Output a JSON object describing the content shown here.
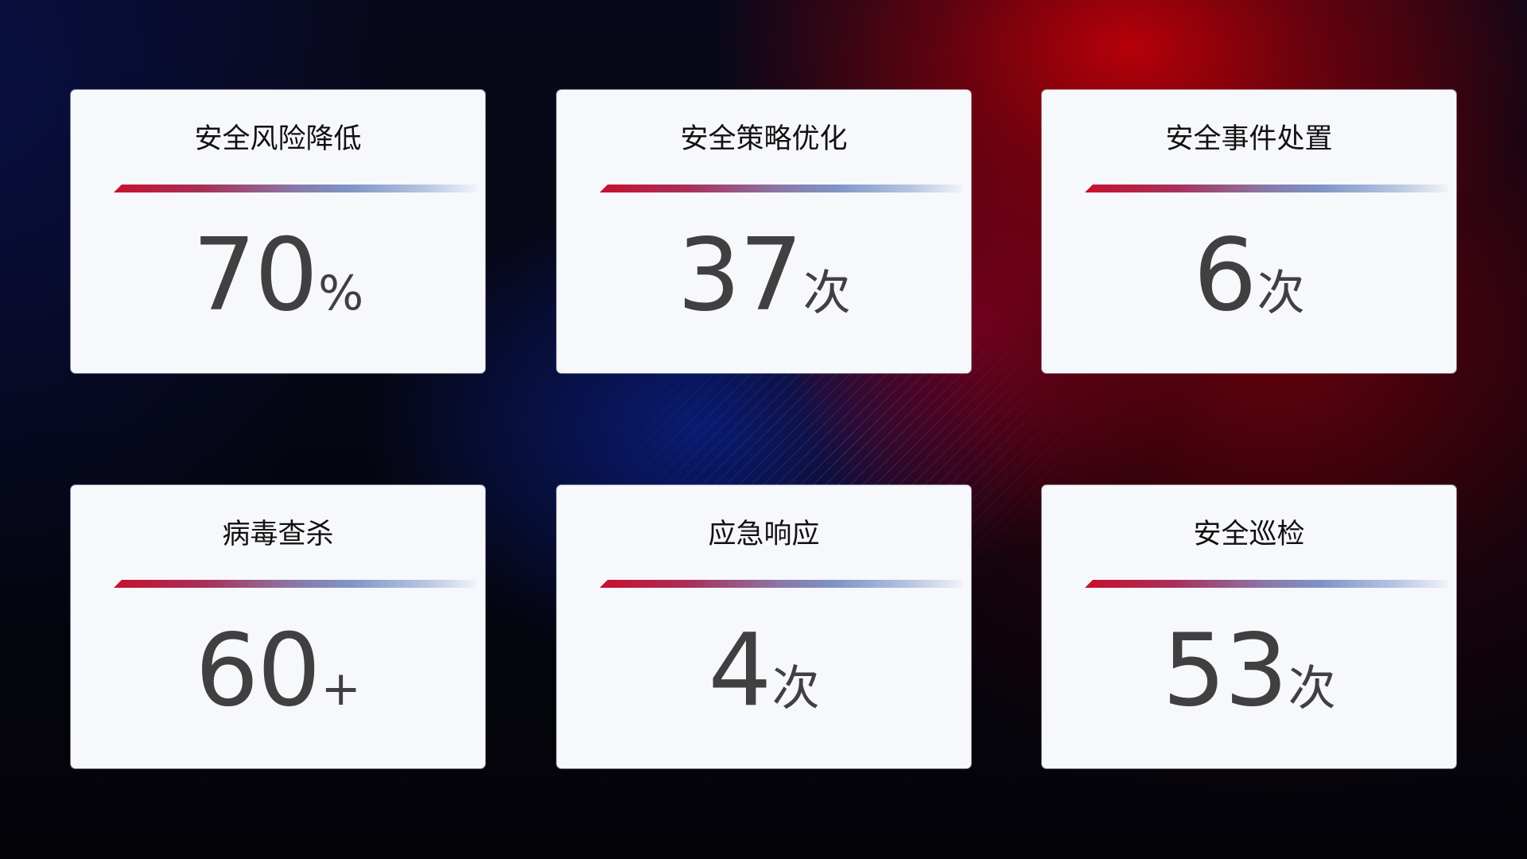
{
  "cards": [
    {
      "title": "安全风险降低",
      "value": "70",
      "unit": "%"
    },
    {
      "title": "安全策略优化",
      "value": "37",
      "unit": "次"
    },
    {
      "title": "安全事件处置",
      "value": "6",
      "unit": "次"
    },
    {
      "title": "病毒查杀",
      "value": "60",
      "unit": "+"
    },
    {
      "title": "应急响应",
      "value": "4",
      "unit": "次"
    },
    {
      "title": "安全巡检",
      "value": "53",
      "unit": "次"
    }
  ],
  "colors": {
    "bar_start": "#c8102e",
    "bar_mid": "#7d95c6",
    "card_bg": "#f6f8fc",
    "value_text": "#404040"
  }
}
